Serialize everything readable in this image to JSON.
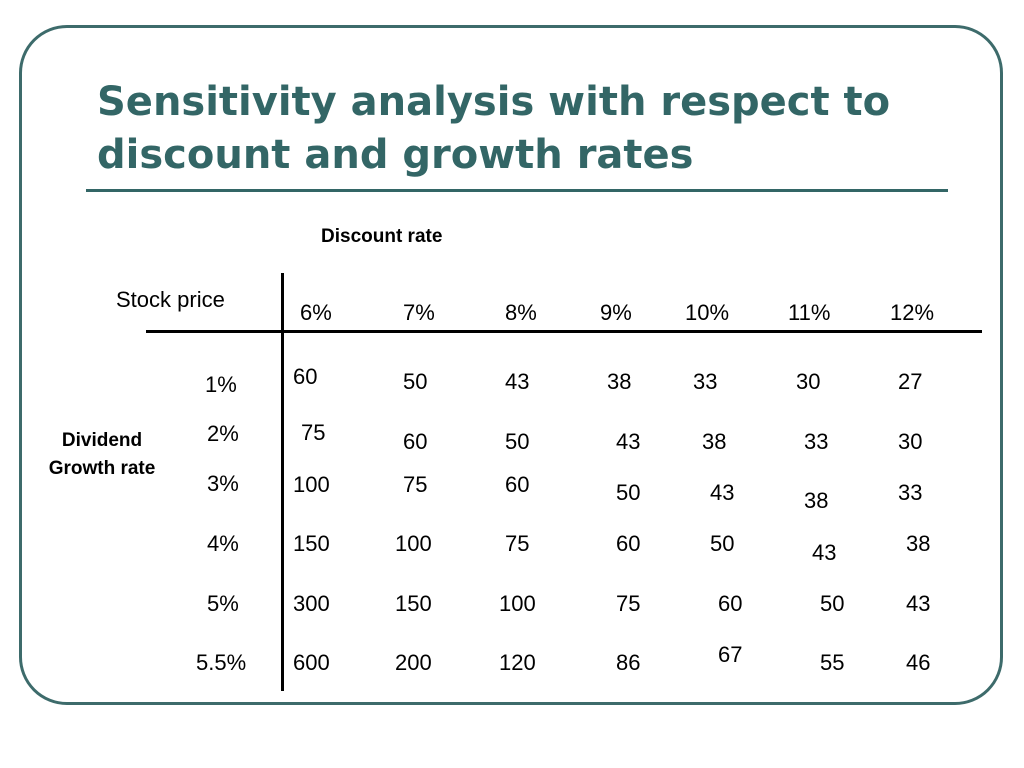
{
  "slide": {
    "title": "Sensitivity analysis with respect to discount and growth rates",
    "discount_header": "Discount rate",
    "corner_label": "Stock price",
    "row_axis_label": "Dividend Growth rate",
    "discount_rates": [
      "6%",
      "7%",
      "8%",
      "9%",
      "10%",
      "11%",
      "12%"
    ],
    "growth_rates": [
      "1%",
      "2%",
      "3%",
      "4%",
      "5%",
      "5.5%"
    ],
    "rows": [
      [
        "60",
        "50",
        "43",
        "38",
        "33",
        "30",
        "27"
      ],
      [
        "75",
        "60",
        "50",
        "43",
        "38",
        "33",
        "30"
      ],
      [
        "100",
        "75",
        "60",
        "50",
        "43",
        "38",
        "33"
      ],
      [
        "150",
        "100",
        "75",
        "60",
        "50",
        "43",
        "38"
      ],
      [
        "300",
        "150",
        "100",
        "75",
        "60",
        "50",
        "43"
      ],
      [
        "600",
        "200",
        "120",
        "86",
        "67",
        "55",
        "46"
      ]
    ]
  },
  "colors": {
    "title": "#336666",
    "frame": "#3d6b6b",
    "text": "#000000"
  }
}
